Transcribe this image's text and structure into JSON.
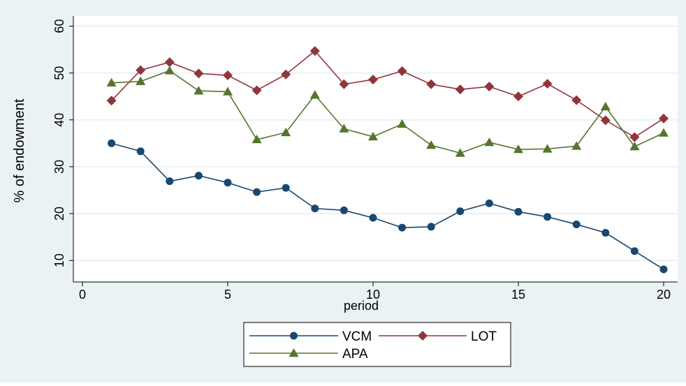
{
  "colors": {
    "outer_background": "#eaf2f3",
    "plot_background": "#ffffff",
    "grid": "#eaf2f3",
    "axis": "#000000"
  },
  "chart_data": {
    "type": "line",
    "title": "",
    "xlabel": "period",
    "ylabel": "% of endowment",
    "xlim": [
      0,
      20
    ],
    "ylim": [
      6,
      62
    ],
    "x_ticks": [
      0,
      5,
      10,
      15,
      20
    ],
    "y_ticks": [
      10,
      20,
      30,
      40,
      50,
      60
    ],
    "grid": "horizontal",
    "legend_position": "bottom",
    "x": [
      1,
      2,
      3,
      4,
      5,
      6,
      7,
      8,
      9,
      10,
      11,
      12,
      13,
      14,
      15,
      16,
      17,
      18,
      19,
      20
    ],
    "series": [
      {
        "name": "VCM",
        "color": "#1a476f",
        "marker": "circle",
        "values": [
          35.0,
          33.3,
          26.9,
          28.1,
          26.6,
          24.6,
          25.5,
          21.1,
          20.7,
          19.1,
          17.0,
          17.2,
          20.5,
          22.2,
          20.4,
          19.3,
          17.7,
          15.9,
          12.0,
          8.1
        ]
      },
      {
        "name": "LOT",
        "color": "#90353b",
        "marker": "diamond",
        "values": [
          44.1,
          50.6,
          52.3,
          49.9,
          49.5,
          46.3,
          49.7,
          54.7,
          47.6,
          48.6,
          50.4,
          47.6,
          46.5,
          47.1,
          45.0,
          47.7,
          44.2,
          39.9,
          36.3,
          40.3
        ]
      },
      {
        "name": "APA",
        "color": "#55752f",
        "marker": "triangle",
        "values": [
          47.9,
          48.2,
          50.5,
          46.2,
          46.0,
          35.8,
          37.3,
          45.3,
          38.1,
          36.4,
          39.1,
          34.6,
          32.9,
          35.2,
          33.7,
          33.8,
          34.4,
          42.8,
          34.3,
          37.2
        ]
      }
    ]
  }
}
